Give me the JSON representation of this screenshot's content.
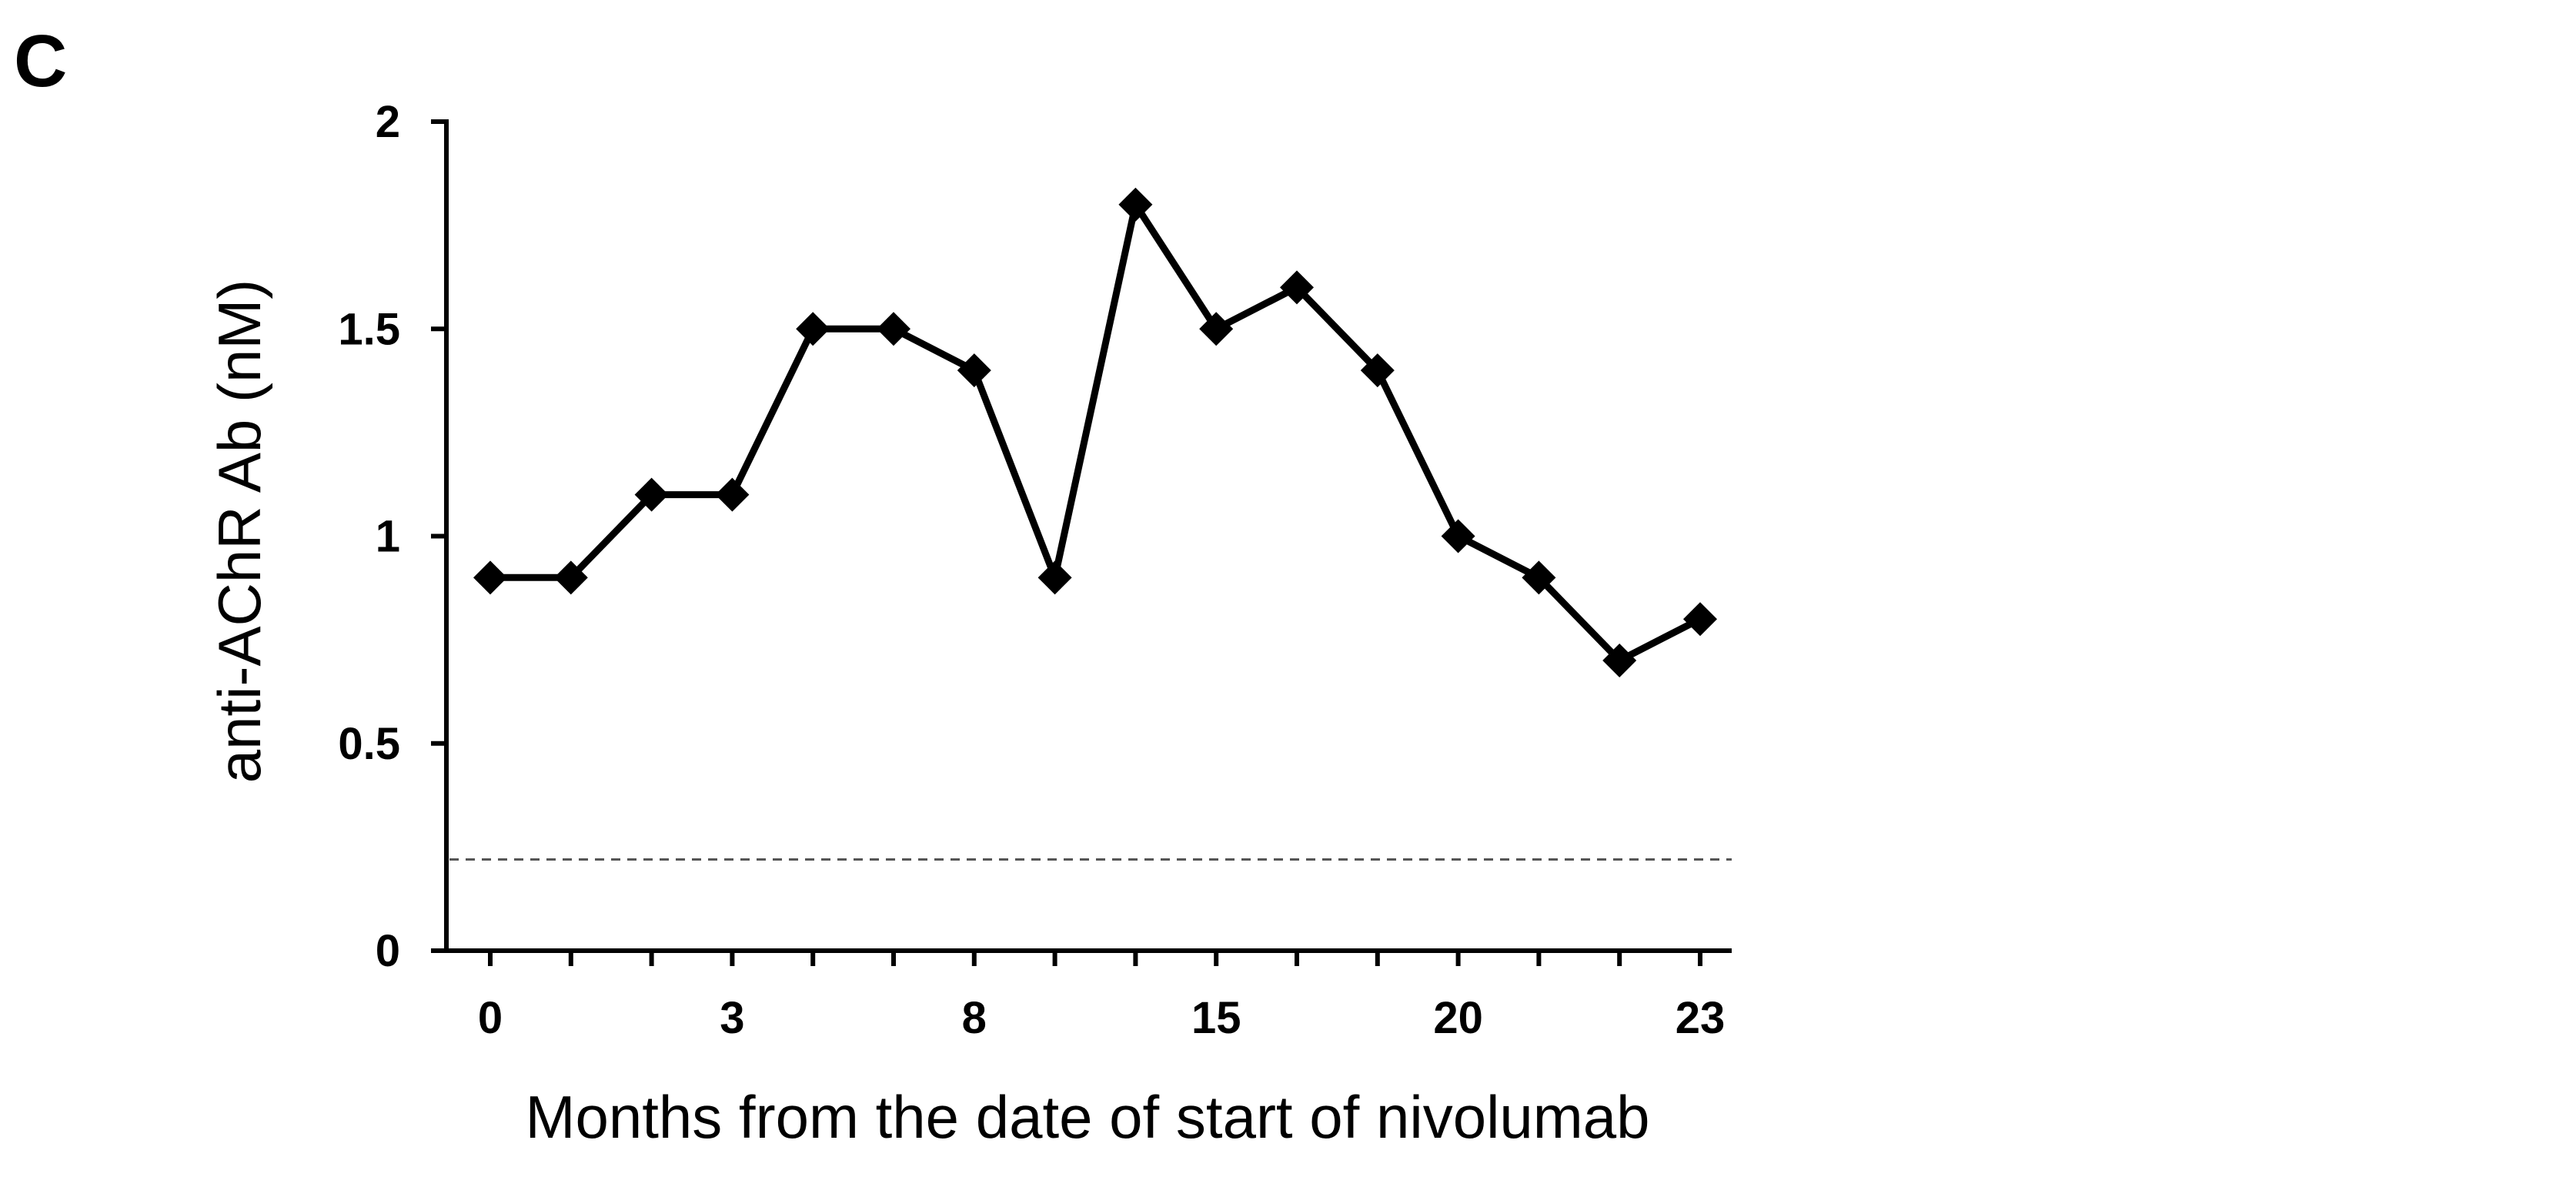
{
  "panel_label": "C",
  "chart_data": {
    "type": "line",
    "title": "",
    "xlabel": "Months from the date of start of nivolumab",
    "ylabel": "anti-AChR Ab (nM)",
    "ylim": [
      0,
      2
    ],
    "y_ticks": [
      "0",
      "0.5",
      "1",
      "1.5",
      "2"
    ],
    "y_tick_values": [
      0,
      0.5,
      1,
      1.5,
      2
    ],
    "x_tick_labels": [
      {
        "label": "0",
        "index": 0
      },
      {
        "label": "3",
        "index": 3
      },
      {
        "label": "8",
        "index": 6
      },
      {
        "label": "15",
        "index": 9
      },
      {
        "label": "20",
        "index": 12
      },
      {
        "label": "23",
        "index": 15
      }
    ],
    "x_tick_count": 16,
    "grid": false,
    "marker": "diamond",
    "series": [
      {
        "name": "anti-AChR Ab",
        "color": "#000000",
        "values": [
          0.9,
          0.9,
          1.1,
          1.1,
          1.5,
          1.5,
          1.4,
          0.9,
          1.8,
          1.5,
          1.6,
          1.4,
          1.0,
          0.9,
          0.7,
          0.8
        ]
      }
    ],
    "reference_line": {
      "value": 0.22,
      "style": "dashed",
      "color": "#555555"
    }
  }
}
